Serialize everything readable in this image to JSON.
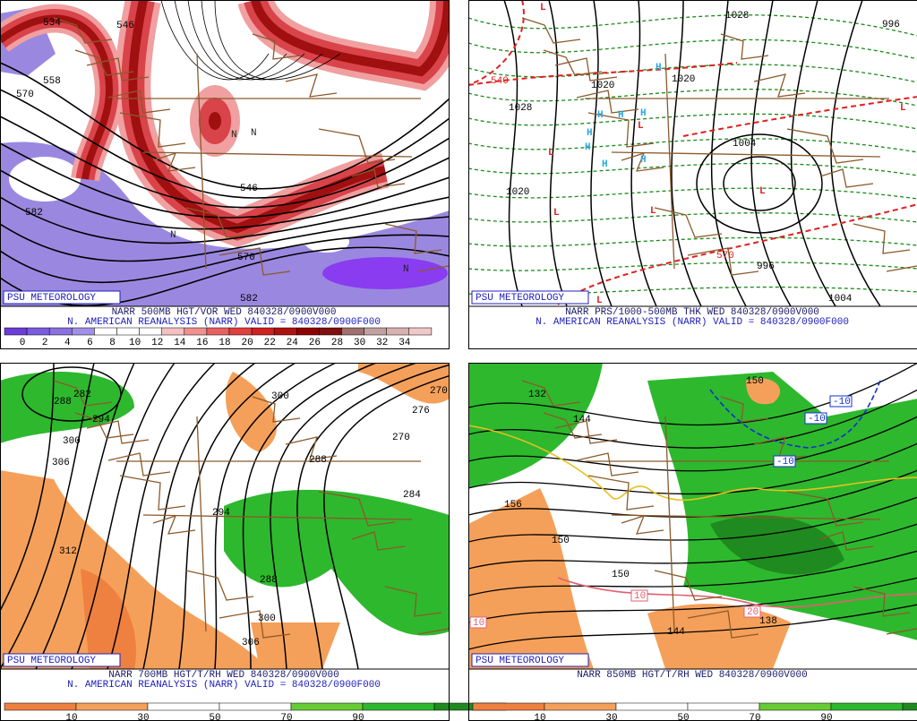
{
  "panels": [
    {
      "badge": "PSU METEOROLOGY",
      "title": "NARR 500MB HGT/VOR WED 840328/0900V000",
      "subtitle": "N. AMERICAN REANALYSIS (NARR) VALID = 840328/0900F000",
      "colorbar": [
        0,
        2,
        4,
        6,
        8,
        10,
        12,
        14,
        16,
        18,
        20,
        22,
        24,
        26,
        28,
        30,
        32,
        34
      ],
      "labels": [
        "534",
        "546",
        "570",
        "558",
        "582",
        "546",
        "570",
        "582",
        "N",
        "N",
        "N",
        "N"
      ]
    },
    {
      "badge": "PSU METEOROLOGY",
      "title": "NARR PRS/1000-500MB THK WED 840328/0900V000",
      "subtitle": "N. AMERICAN REANALYSIS (NARR) VALID = 840328/0900F000",
      "labels": [
        "1028",
        "1020",
        "1020",
        "1028",
        "1020",
        "1004",
        "996",
        "1004",
        "540",
        "570",
        "996",
        "H",
        "H",
        "H",
        "H",
        "H",
        "H",
        "H",
        "H",
        "L",
        "L",
        "L",
        "L",
        "L",
        "L",
        "L",
        "L"
      ]
    },
    {
      "badge": "PSU METEOROLOGY",
      "title": "NARR 700MB HGT/T/RH WED 840328/0900V000",
      "subtitle": "N. AMERICAN REANALYSIS (NARR) VALID = 840328/0900F000",
      "colorbar": [
        10,
        30,
        50,
        70,
        90
      ],
      "labels": [
        "282",
        "288",
        "294",
        "300",
        "276",
        "270",
        "270",
        "300",
        "306",
        "288",
        "294",
        "284",
        "312",
        "288",
        "300",
        "306"
      ]
    },
    {
      "badge": "PSU METEOROLOGY",
      "title": "NARR 850MB HGT/T/RH WED 840328/0900V000",
      "colorbar": [
        10,
        30,
        50,
        70,
        90
      ],
      "labels": [
        "150",
        "132",
        "144",
        "156",
        "150",
        "150",
        "144",
        "138",
        "-10",
        "-10",
        "-10",
        "10",
        "20",
        "10"
      ]
    }
  ]
}
